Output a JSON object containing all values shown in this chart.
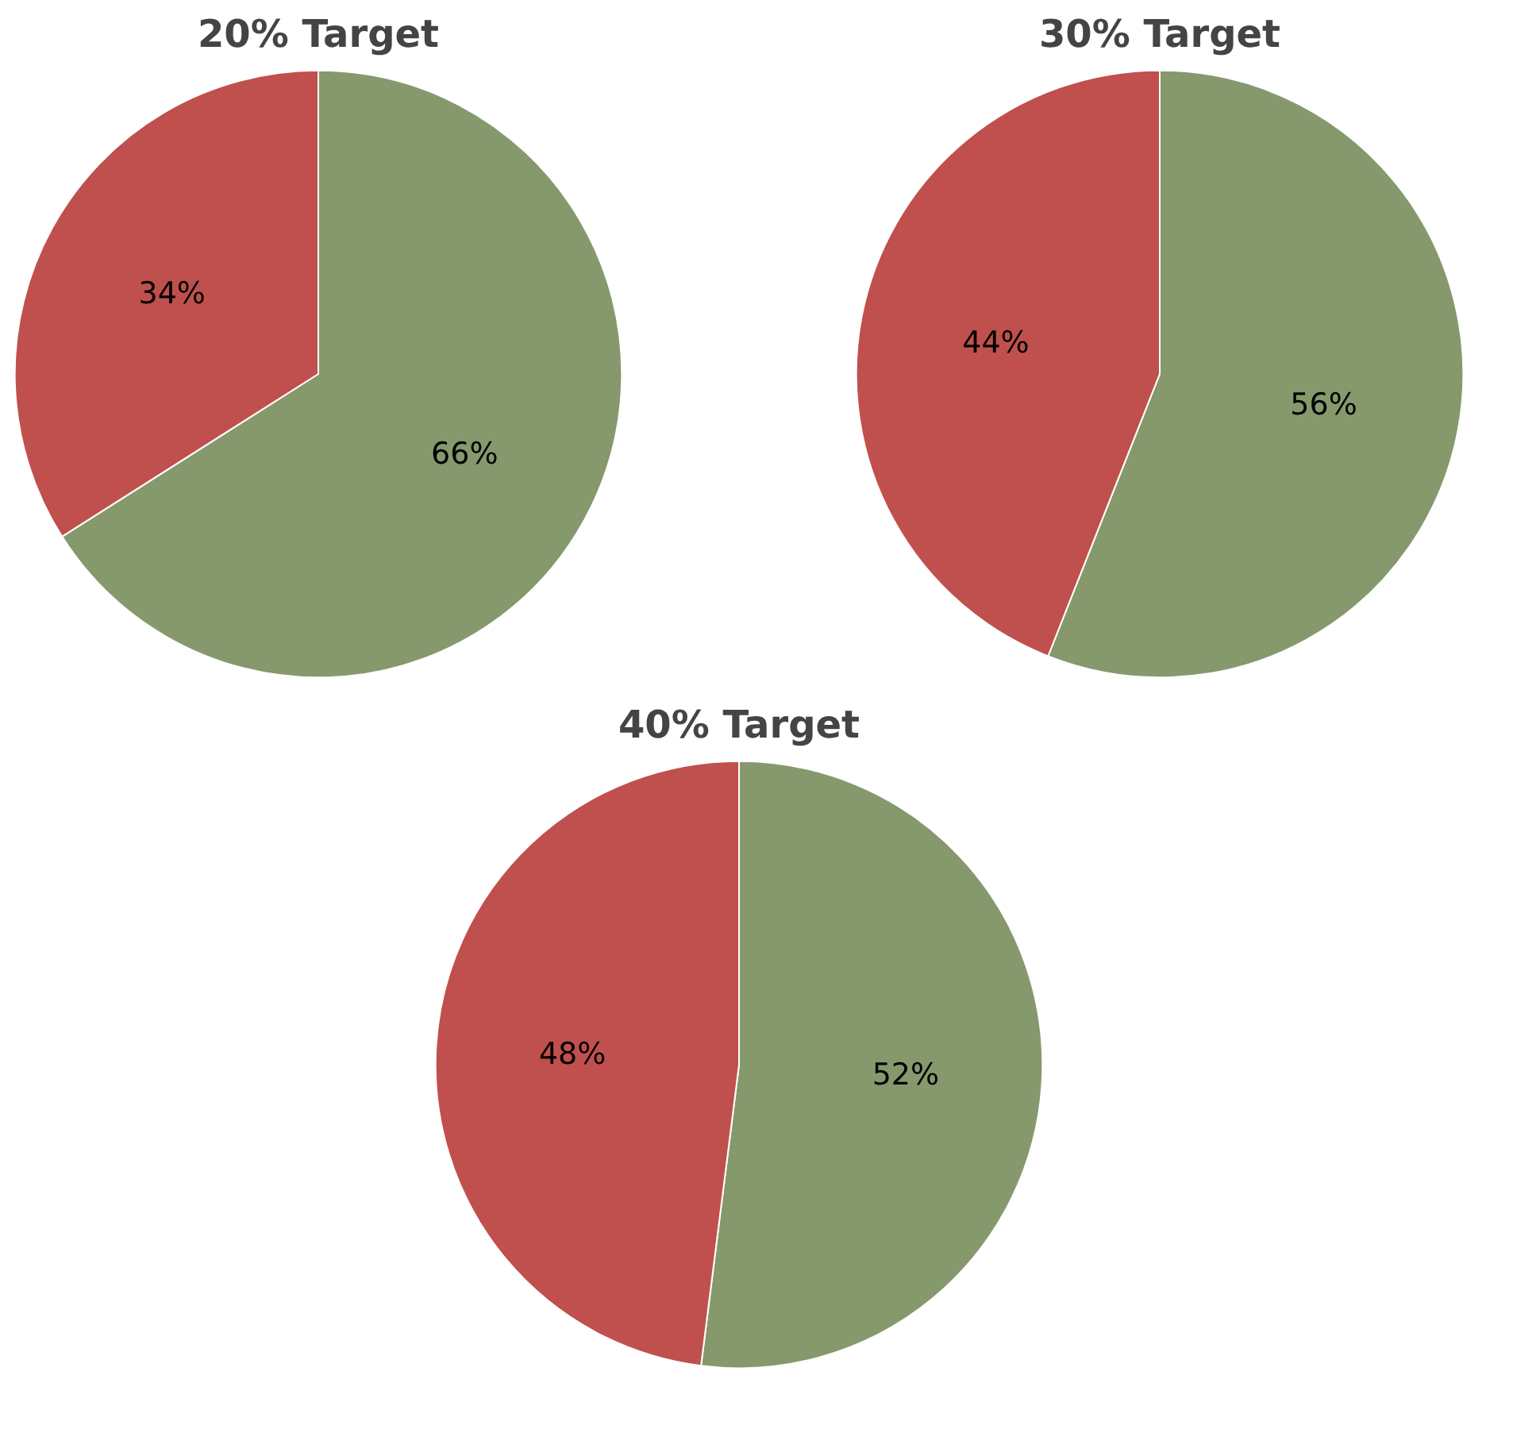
{
  "chart_data": [
    {
      "type": "pie",
      "title": "20% Target",
      "categories": [
        null,
        null
      ],
      "values": [
        66,
        34
      ],
      "colors": [
        "#86996d",
        "#c0504d"
      ],
      "value_labels": [
        "66%",
        "34%"
      ]
    },
    {
      "type": "pie",
      "title": "30% Target",
      "categories": [
        null,
        null
      ],
      "values": [
        56,
        44
      ],
      "colors": [
        "#86996d",
        "#c0504d"
      ],
      "value_labels": [
        "56%",
        "44%"
      ]
    },
    {
      "type": "pie",
      "title": "40% Target",
      "categories": [
        null,
        null
      ],
      "values": [
        52,
        48
      ],
      "colors": [
        "#86996d",
        "#c0504d"
      ],
      "value_labels": [
        "52%",
        "48%"
      ]
    }
  ]
}
